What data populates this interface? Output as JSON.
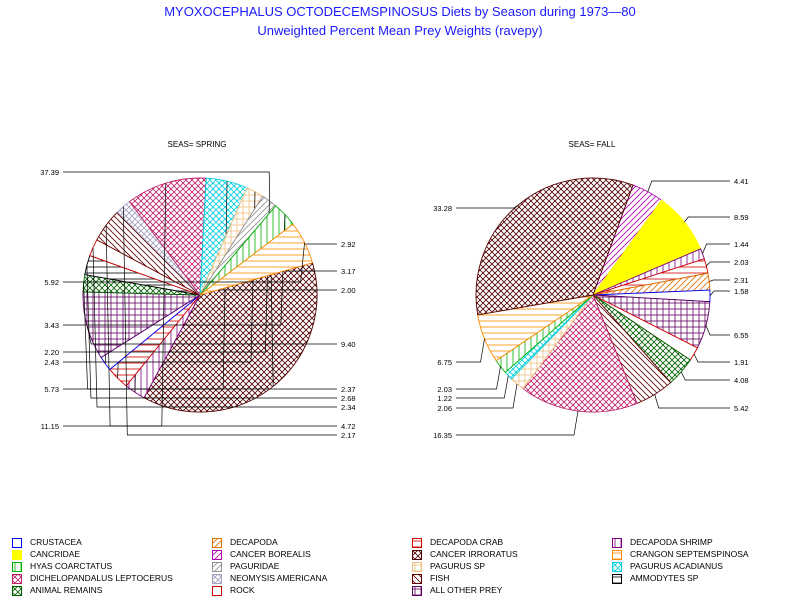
{
  "title": "MYOXOCEPHALUS OCTODECEMSPINOSUS Diets by Season during 1973—80",
  "subtitle": "Unweighted Percent Mean Prey Weights (ravepy)",
  "categories": [
    {
      "name": "CRUSTACEA",
      "color": "#0000ff",
      "pattern": "none"
    },
    {
      "name": "DECAPODA",
      "color": "#e07000",
      "pattern": "diag-up"
    },
    {
      "name": "DECAPODA CRAB",
      "color": "#d00000",
      "pattern": "hlines"
    },
    {
      "name": "DECAPODA SHRIMP",
      "color": "#800080",
      "pattern": "vlines"
    },
    {
      "name": "CANCRIDAE",
      "color": "#ffff00",
      "pattern": "solid"
    },
    {
      "name": "CANCER BOREALIS",
      "color": "#b000b0",
      "pattern": "diag-up"
    },
    {
      "name": "CANCER IRRORATUS",
      "color": "#500000",
      "pattern": "crosshatch-diag"
    },
    {
      "name": "CRANGON SEPTEMSPINOSA",
      "color": "#ff8c00",
      "pattern": "hlines"
    },
    {
      "name": "HYAS COARCTATUS",
      "color": "#00b000",
      "pattern": "vlines"
    },
    {
      "name": "PAGURIDAE",
      "color": "#909090",
      "pattern": "diag-up"
    },
    {
      "name": "PAGURUS SP",
      "color": "#f0c080",
      "pattern": "grid"
    },
    {
      "name": "PAGURUS ACADIANUS",
      "color": "#00d0e0",
      "pattern": "crosshatch-diag"
    },
    {
      "name": "DICHELOPANDALUS LEPTOCERUS",
      "color": "#c0206a",
      "pattern": "crosshatch-diag"
    },
    {
      "name": "NEOMYSIS AMERICANA",
      "color": "#a0a0c0",
      "pattern": "crosshatch-diag"
    },
    {
      "name": "FISH",
      "color": "#600000",
      "pattern": "diag-down"
    },
    {
      "name": "AMMODYTES SP",
      "color": "#000000",
      "pattern": "hlines"
    },
    {
      "name": "ANIMAL REMAINS",
      "color": "#006000",
      "pattern": "crosshatch-diag"
    },
    {
      "name": "ROCK",
      "color": "#d00000",
      "pattern": "none"
    },
    {
      "name": "ALL OTHER PREY",
      "color": "#600060",
      "pattern": "grid"
    }
  ],
  "chart_data": [
    {
      "type": "pie",
      "title": "SEAS= SPRING",
      "slices": [
        {
          "category": "CANCER IRRORATUS",
          "value": 37.39,
          "label": "37.39"
        },
        {
          "category": "DECAPODA SHRIMP",
          "value": 2.92,
          "label": "2.92"
        },
        {
          "category": "DECAPODA CRAB",
          "value": 3.17,
          "label": "3.17"
        },
        {
          "category": "CRUSTACEA",
          "value": 2.0,
          "label": "2.00"
        },
        {
          "category": "ALL OTHER PREY",
          "value": 9.4,
          "label": "9.40"
        },
        {
          "category": "ANIMAL REMAINS",
          "value": 2.37,
          "label": "2.37"
        },
        {
          "category": "AMMODYTES SP",
          "value": 2.68,
          "label": "2.68"
        },
        {
          "category": "ROCK",
          "value": 2.34,
          "label": "2.34"
        },
        {
          "category": "FISH",
          "value": 4.72,
          "label": "4.72"
        },
        {
          "category": "NEOMYSIS AMERICANA",
          "value": 2.17,
          "label": "2.17"
        },
        {
          "category": "DICHELOPANDALUS LEPTOCERUS",
          "value": 11.15,
          "label": "11.15"
        },
        {
          "category": "PAGURUS ACADIANUS",
          "value": 5.73,
          "label": "5.73"
        },
        {
          "category": "PAGURUS SP",
          "value": 2.43,
          "label": "2.43"
        },
        {
          "category": "PAGURIDAE",
          "value": 2.2,
          "label": "2.20"
        },
        {
          "category": "HYAS COARCTATUS",
          "value": 3.43,
          "label": "3.43"
        },
        {
          "category": "CRANGON SEPTEMSPINOSA",
          "value": 5.92,
          "label": "5.92"
        }
      ]
    },
    {
      "type": "pie",
      "title": "SEAS= FALL",
      "slices": [
        {
          "category": "CANCER BOREALIS",
          "value": 4.41,
          "label": "4.41"
        },
        {
          "category": "CANCRIDAE",
          "value": 8.59,
          "label": "8.59"
        },
        {
          "category": "DECAPODA SHRIMP",
          "value": 1.44,
          "label": "1.44"
        },
        {
          "category": "DECAPODA CRAB",
          "value": 2.03,
          "label": "2.03"
        },
        {
          "category": "DECAPODA",
          "value": 2.31,
          "label": "2.31"
        },
        {
          "category": "CRUSTACEA",
          "value": 1.58,
          "label": "1.58"
        },
        {
          "category": "ALL OTHER PREY",
          "value": 6.55,
          "label": "6.55"
        },
        {
          "category": "ROCK",
          "value": 1.91,
          "label": "1.91"
        },
        {
          "category": "ANIMAL REMAINS",
          "value": 4.08,
          "label": "4.08"
        },
        {
          "category": "FISH",
          "value": 5.42,
          "label": "5.42"
        },
        {
          "category": "DICHELOPANDALUS LEPTOCERUS",
          "value": 16.35,
          "label": "16.35"
        },
        {
          "category": "PAGURUS SP",
          "value": 2.06,
          "label": "2.06"
        },
        {
          "category": "PAGURUS ACADIANUS",
          "value": 1.22,
          "label": "1.22"
        },
        {
          "category": "HYAS COARCTATUS",
          "value": 2.03,
          "label": "2.03"
        },
        {
          "category": "CRANGON SEPTEMSPINOSA",
          "value": 6.75,
          "label": "6.75"
        },
        {
          "category": "CANCER IRRORATUS",
          "value": 33.28,
          "label": "33.28"
        }
      ]
    }
  ]
}
